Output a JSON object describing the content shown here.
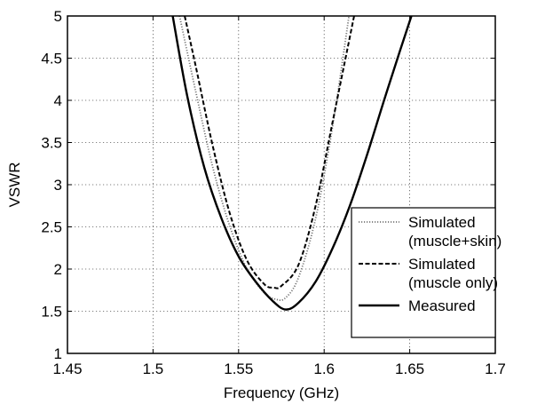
{
  "chart_data": {
    "type": "line",
    "title": "",
    "xlabel": "Frequency (GHz)",
    "ylabel": "VSWR",
    "xlim": [
      1.45,
      1.7
    ],
    "ylim": [
      1,
      5
    ],
    "xticks": [
      "1.45",
      "1.5",
      "1.55",
      "1.6",
      "1.65",
      "1.7"
    ],
    "yticks": [
      "1",
      "1.5",
      "2",
      "2.5",
      "3",
      "3.5",
      "4",
      "4.5",
      "5"
    ],
    "grid": true,
    "grid_style": "dotted",
    "legend_position": "center-right",
    "series": [
      {
        "name": "Simulated (muscle+skin)",
        "legend_lines": [
          "Simulated",
          "(muscle+skin)"
        ],
        "style": "dotted",
        "color": "#777777",
        "x": [
          1.5155,
          1.525,
          1.535,
          1.545,
          1.555,
          1.565,
          1.572,
          1.5775,
          1.585,
          1.595,
          1.605,
          1.6145
        ],
        "y": [
          5.0,
          4.1,
          3.2,
          2.5,
          2.0,
          1.72,
          1.64,
          1.66,
          1.9,
          2.6,
          3.7,
          5.0
        ]
      },
      {
        "name": "Simulated (muscle only)",
        "legend_lines": [
          "Simulated",
          "(muscle only)"
        ],
        "style": "dashed",
        "color": "#000000",
        "x": [
          1.5185,
          1.525,
          1.535,
          1.545,
          1.555,
          1.565,
          1.5705,
          1.575,
          1.585,
          1.595,
          1.605,
          1.6175
        ],
        "y": [
          5.0,
          4.4,
          3.45,
          2.65,
          2.1,
          1.82,
          1.78,
          1.8,
          2.05,
          2.75,
          3.75,
          5.0
        ]
      },
      {
        "name": "Measured",
        "legend_lines": [
          "Measured"
        ],
        "style": "solid",
        "color": "#000000",
        "x": [
          1.5115,
          1.52,
          1.53,
          1.54,
          1.55,
          1.56,
          1.57,
          1.5775,
          1.585,
          1.595,
          1.605,
          1.615,
          1.625,
          1.635,
          1.6445,
          1.651
        ],
        "y": [
          5.0,
          4.05,
          3.2,
          2.6,
          2.15,
          1.85,
          1.62,
          1.52,
          1.6,
          1.85,
          2.25,
          2.75,
          3.35,
          4.0,
          4.6,
          5.0
        ]
      }
    ]
  }
}
